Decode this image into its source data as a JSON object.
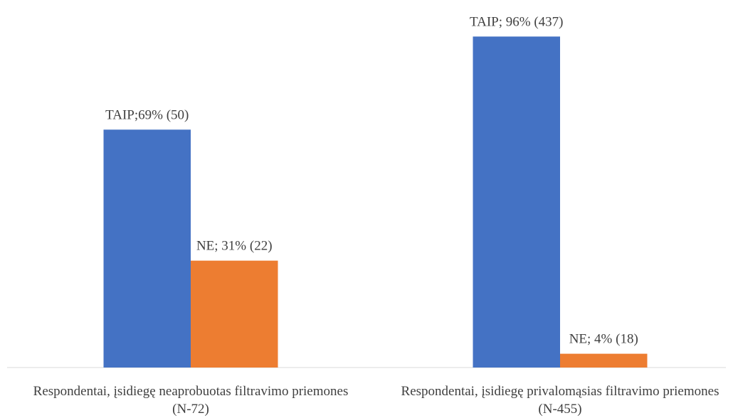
{
  "chart_data": {
    "type": "bar",
    "categories": [
      "Respondentai, įsidiegę neaprobuotas filtravimo priemones (N-72)",
      "Respondentai, įsidiegę privalomąsias filtravimo priemones (N-455)"
    ],
    "series": [
      {
        "color": "#4472c4",
        "values": [
          69,
          96
        ],
        "value_labels": [
          "TAIP;69% (50)",
          "TAIP; 96% (437)"
        ]
      },
      {
        "color": "#ed7d31",
        "values": [
          31,
          4
        ],
        "value_labels": [
          "NE; 31% (22)",
          "NE; 4% (18)"
        ]
      }
    ]
  }
}
